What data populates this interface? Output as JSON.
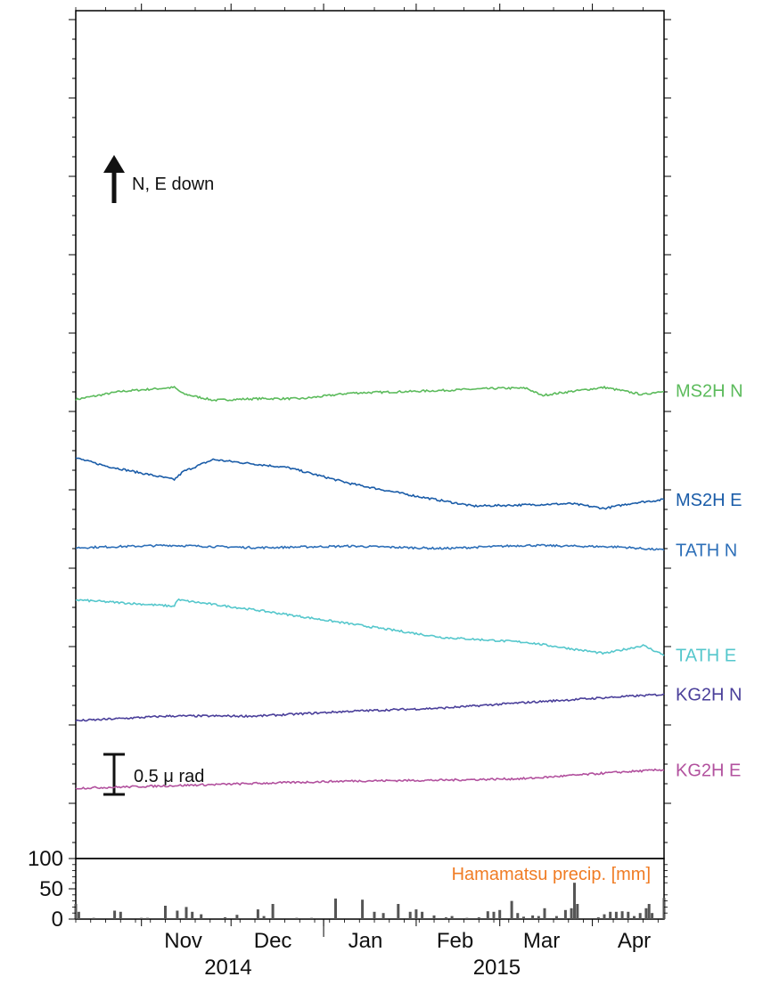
{
  "chart_data": [
    {
      "type": "line",
      "title": "",
      "direction_note": "N, E down",
      "scale_bar_label": "0.5 μ rad",
      "x_range": [
        "2014-10-10",
        "2015-04-25"
      ],
      "series": [
        {
          "name": "MS2H N",
          "color": "#5cbb5c",
          "unit": "μrad (relative)",
          "points": [
            [
              "2014-10-10",
              6.35
            ],
            [
              "2014-10-25",
              6.45
            ],
            [
              "2014-11-12",
              6.5
            ],
            [
              "2014-11-15",
              6.42
            ],
            [
              "2014-11-25",
              6.34
            ],
            [
              "2014-12-10",
              6.36
            ],
            [
              "2014-12-25",
              6.36
            ],
            [
              "2015-01-10",
              6.43
            ],
            [
              "2015-01-31",
              6.45
            ],
            [
              "2015-02-15",
              6.47
            ],
            [
              "2015-03-01",
              6.49
            ],
            [
              "2015-03-10",
              6.49
            ],
            [
              "2015-03-15",
              6.4
            ],
            [
              "2015-03-25",
              6.45
            ],
            [
              "2015-04-05",
              6.5
            ],
            [
              "2015-04-18",
              6.41
            ],
            [
              "2015-04-25",
              6.46
            ]
          ]
        },
        {
          "name": "MS2H E",
          "color": "#1a5ca8",
          "unit": "μrad (relative)",
          "points": [
            [
              "2014-10-10",
              5.62
            ],
            [
              "2014-10-20",
              5.52
            ],
            [
              "2014-11-12",
              5.35
            ],
            [
              "2014-11-15",
              5.45
            ],
            [
              "2014-11-25",
              5.6
            ],
            [
              "2014-12-20",
              5.5
            ],
            [
              "2015-01-10",
              5.3
            ],
            [
              "2015-01-31",
              5.15
            ],
            [
              "2015-02-20",
              5.02
            ],
            [
              "2015-03-05",
              5.03
            ],
            [
              "2015-03-25",
              5.05
            ],
            [
              "2015-04-05",
              4.99
            ],
            [
              "2015-04-15",
              5.06
            ],
            [
              "2015-04-25",
              5.1
            ]
          ]
        },
        {
          "name": "TATH N",
          "color": "#2d6fb8",
          "unit": "μrad (relative)",
          "points": [
            [
              "2014-10-10",
              4.5
            ],
            [
              "2014-11-10",
              4.53
            ],
            [
              "2014-12-10",
              4.5
            ],
            [
              "2015-01-10",
              4.52
            ],
            [
              "2015-02-10",
              4.49
            ],
            [
              "2015-03-10",
              4.53
            ],
            [
              "2015-04-10",
              4.51
            ],
            [
              "2015-04-25",
              4.47
            ]
          ]
        },
        {
          "name": "TATH E",
          "color": "#55c7cc",
          "unit": "μrad (relative)",
          "points": [
            [
              "2014-10-10",
              3.85
            ],
            [
              "2014-11-12",
              3.77
            ],
            [
              "2014-11-13",
              3.85
            ],
            [
              "2014-12-10",
              3.72
            ],
            [
              "2015-01-10",
              3.55
            ],
            [
              "2015-02-10",
              3.38
            ],
            [
              "2015-03-10",
              3.32
            ],
            [
              "2015-04-05",
              3.18
            ],
            [
              "2015-04-18",
              3.28
            ],
            [
              "2015-04-25",
              3.16
            ]
          ]
        },
        {
          "name": "KG2H N",
          "color": "#4a3f9a",
          "unit": "μrad (relative)",
          "points": [
            [
              "2014-10-10",
              2.34
            ],
            [
              "2014-11-10",
              2.4
            ],
            [
              "2014-12-10",
              2.4
            ],
            [
              "2015-01-10",
              2.46
            ],
            [
              "2015-02-10",
              2.5
            ],
            [
              "2015-03-10",
              2.57
            ],
            [
              "2015-04-10",
              2.64
            ],
            [
              "2015-04-25",
              2.67
            ]
          ]
        },
        {
          "name": "KG2H E",
          "color": "#b2519e",
          "unit": "μrad (relative)",
          "points": [
            [
              "2014-10-10",
              1.5
            ],
            [
              "2014-11-10",
              1.53
            ],
            [
              "2014-12-10",
              1.56
            ],
            [
              "2015-01-10",
              1.59
            ],
            [
              "2015-02-10",
              1.6
            ],
            [
              "2015-03-10",
              1.62
            ],
            [
              "2015-04-10",
              1.7
            ],
            [
              "2015-04-25",
              1.73
            ]
          ]
        }
      ],
      "xaxis": {
        "month_labels": [
          {
            "label": "Nov",
            "date": "2014-11-15"
          },
          {
            "label": "Dec",
            "date": "2014-12-15"
          },
          {
            "label": "Jan",
            "date": "2015-01-15"
          },
          {
            "label": "Feb",
            "date": "2015-02-14"
          },
          {
            "label": "Mar",
            "date": "2015-03-15"
          },
          {
            "label": "Apr",
            "date": "2015-04-15"
          }
        ],
        "year_labels": [
          {
            "label": "2014",
            "date": "2014-11-30"
          },
          {
            "label": "2015",
            "date": "2015-02-28"
          }
        ],
        "year_divider": "2015-01-01"
      }
    },
    {
      "type": "bar",
      "title": "Hamamatsu precip. [mm]",
      "title_color": "#f07c24",
      "bar_color": "#555555",
      "ylim": [
        0,
        100
      ],
      "yticks": [
        "0",
        "50",
        "100"
      ],
      "ytick_values": [
        0,
        50,
        100
      ],
      "x_range": [
        "2014-10-10",
        "2015-04-25"
      ],
      "values": [
        [
          "2014-10-10",
          25
        ],
        [
          "2014-10-11",
          12
        ],
        [
          "2014-10-16",
          2
        ],
        [
          "2014-10-23",
          14
        ],
        [
          "2014-10-25",
          12
        ],
        [
          "2014-11-01",
          2
        ],
        [
          "2014-11-03",
          2
        ],
        [
          "2014-11-09",
          22
        ],
        [
          "2014-11-13",
          14
        ],
        [
          "2014-11-16",
          20
        ],
        [
          "2014-11-18",
          12
        ],
        [
          "2014-11-21",
          8
        ],
        [
          "2014-11-29",
          3
        ],
        [
          "2014-12-03",
          7
        ],
        [
          "2014-12-10",
          16
        ],
        [
          "2014-12-12",
          5
        ],
        [
          "2014-12-15",
          25
        ],
        [
          "2014-12-23",
          2
        ],
        [
          "2014-12-28",
          2
        ],
        [
          "2015-01-05",
          34
        ],
        [
          "2015-01-14",
          32
        ],
        [
          "2015-01-18",
          12
        ],
        [
          "2015-01-21",
          10
        ],
        [
          "2015-01-26",
          25
        ],
        [
          "2015-01-30",
          12
        ],
        [
          "2015-02-01",
          16
        ],
        [
          "2015-02-03",
          12
        ],
        [
          "2015-02-07",
          6
        ],
        [
          "2015-02-11",
          3
        ],
        [
          "2015-02-13",
          5
        ],
        [
          "2015-02-18",
          2
        ],
        [
          "2015-02-22",
          3
        ],
        [
          "2015-02-25",
          13
        ],
        [
          "2015-02-27",
          12
        ],
        [
          "2015-03-01",
          15
        ],
        [
          "2015-03-05",
          30
        ],
        [
          "2015-03-07",
          10
        ],
        [
          "2015-03-09",
          4
        ],
        [
          "2015-03-12",
          6
        ],
        [
          "2015-03-14",
          5
        ],
        [
          "2015-03-16",
          18
        ],
        [
          "2015-03-20",
          5
        ],
        [
          "2015-03-23",
          15
        ],
        [
          "2015-03-25",
          18
        ],
        [
          "2015-03-26",
          60
        ],
        [
          "2015-03-27",
          25
        ],
        [
          "2015-04-03",
          3
        ],
        [
          "2015-04-05",
          8
        ],
        [
          "2015-04-07",
          12
        ],
        [
          "2015-04-09",
          12
        ],
        [
          "2015-04-11",
          13
        ],
        [
          "2015-04-13",
          12
        ],
        [
          "2015-04-15",
          5
        ],
        [
          "2015-04-17",
          10
        ],
        [
          "2015-04-19",
          18
        ],
        [
          "2015-04-20",
          25
        ],
        [
          "2015-04-21",
          10
        ],
        [
          "2015-04-25",
          35
        ]
      ]
    }
  ]
}
